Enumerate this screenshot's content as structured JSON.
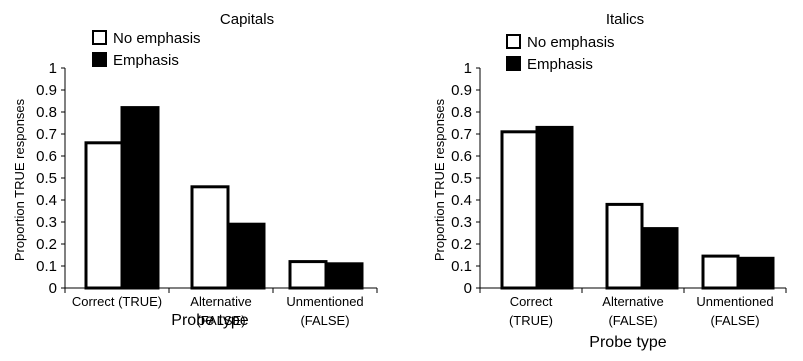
{
  "colors": {
    "no_emphasis": "#ffffff",
    "emphasis": "#000000",
    "outline": "#000000"
  },
  "chart_data": [
    {
      "type": "bar",
      "title": "Capitals",
      "xlabel": "Probe type",
      "ylabel": "Proportion TRUE responses",
      "ylim": [
        0,
        1
      ],
      "yticks": [
        "0",
        "0.1",
        "0.2",
        "0.3",
        "0.4",
        "0.5",
        "0.6",
        "0.7",
        "0.8",
        "0.9",
        "1"
      ],
      "categories": [
        [
          "Correct (TRUE)"
        ],
        [
          "Alternative",
          "(FALSE)"
        ],
        [
          "Unmentioned",
          "(FALSE)"
        ]
      ],
      "series": [
        {
          "name": "No emphasis",
          "values": [
            0.66,
            0.46,
            0.12
          ]
        },
        {
          "name": "Emphasis",
          "values": [
            0.82,
            0.29,
            0.11
          ]
        }
      ],
      "legend": "top-left",
      "grid": false
    },
    {
      "type": "bar",
      "title": "Italics",
      "xlabel": "Probe type",
      "ylabel": "Proportion TRUE responses",
      "ylim": [
        0,
        1
      ],
      "yticks": [
        "0",
        "0.1",
        "0.2",
        "0.3",
        "0.4",
        "0.5",
        "0.6",
        "0.7",
        "0.8",
        "0.9",
        "1"
      ],
      "categories": [
        [
          "Correct",
          "(TRUE)"
        ],
        [
          "Alternative",
          "(FALSE)"
        ],
        [
          "Unmentioned",
          "(FALSE)"
        ]
      ],
      "series": [
        {
          "name": "No emphasis",
          "values": [
            0.71,
            0.38,
            0.145
          ]
        },
        {
          "name": "Emphasis",
          "values": [
            0.73,
            0.27,
            0.135
          ]
        }
      ],
      "legend": "top-left",
      "grid": false
    }
  ]
}
